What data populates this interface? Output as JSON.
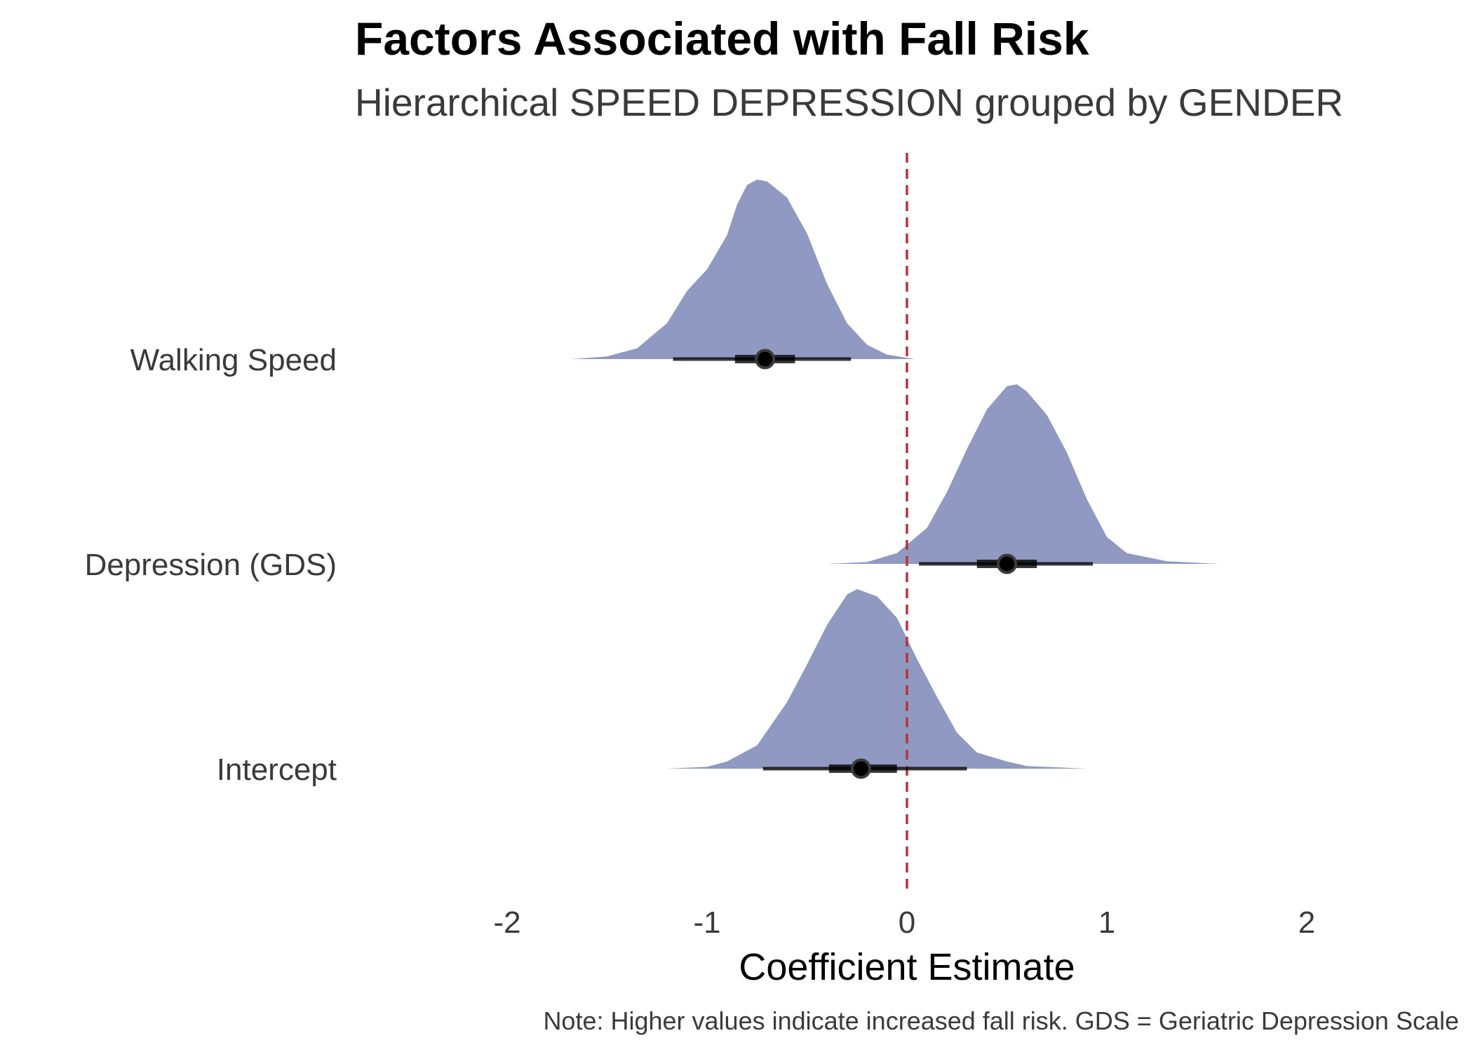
{
  "chart_data": {
    "type": "density-interval",
    "title": "Factors Associated with Fall Risk",
    "subtitle": "Hierarchical SPEED DEPRESSION grouped by GENDER",
    "xlabel": "Coefficient Estimate",
    "ylabel": "",
    "caption": "Note: Higher values indicate increased fall risk. GDS = Geriatric Depression Scale",
    "xlim": [
      -2.6,
      2.6
    ],
    "xticks": [
      -2,
      -1,
      0,
      1,
      2
    ],
    "xtick_labels": [
      "-2",
      "-1",
      "0",
      "1",
      "2"
    ],
    "reference_line": {
      "x": 0,
      "style": "dashed",
      "color": "#b5343d"
    },
    "grid": false,
    "colors": {
      "density": "#8f99c1",
      "interval": "#000000"
    },
    "categories": [
      "Walking Speed",
      "Depression (GDS)",
      "Intercept"
    ],
    "series": [
      {
        "label": "Walking Speed",
        "point": -0.71,
        "interval_66": [
          -0.86,
          -0.56
        ],
        "interval_95": [
          -1.17,
          -0.28
        ],
        "density_range": [
          -1.68,
          0.04
        ],
        "density": [
          [
            -1.68,
            0.0
          ],
          [
            -1.5,
            0.015
          ],
          [
            -1.35,
            0.06
          ],
          [
            -1.2,
            0.2
          ],
          [
            -1.1,
            0.38
          ],
          [
            -1.0,
            0.5
          ],
          [
            -0.9,
            0.69
          ],
          [
            -0.85,
            0.86
          ],
          [
            -0.8,
            0.97
          ],
          [
            -0.75,
            1.0
          ],
          [
            -0.7,
            0.99
          ],
          [
            -0.6,
            0.9
          ],
          [
            -0.5,
            0.7
          ],
          [
            -0.4,
            0.42
          ],
          [
            -0.3,
            0.2
          ],
          [
            -0.2,
            0.08
          ],
          [
            -0.1,
            0.025
          ],
          [
            0.04,
            0.0
          ]
        ]
      },
      {
        "label": "Depression (GDS)",
        "point": 0.5,
        "interval_66": [
          0.35,
          0.65
        ],
        "interval_95": [
          0.06,
          0.93
        ],
        "density_range": [
          -0.4,
          1.56
        ],
        "density": [
          [
            -0.4,
            0.0
          ],
          [
            -0.2,
            0.01
          ],
          [
            -0.05,
            0.06
          ],
          [
            0.1,
            0.2
          ],
          [
            0.2,
            0.4
          ],
          [
            0.3,
            0.64
          ],
          [
            0.4,
            0.86
          ],
          [
            0.5,
            0.99
          ],
          [
            0.55,
            1.0
          ],
          [
            0.6,
            0.96
          ],
          [
            0.7,
            0.83
          ],
          [
            0.8,
            0.62
          ],
          [
            0.9,
            0.36
          ],
          [
            1.0,
            0.15
          ],
          [
            1.1,
            0.06
          ],
          [
            1.3,
            0.015
          ],
          [
            1.56,
            0.0
          ]
        ]
      },
      {
        "label": "Intercept",
        "point": -0.23,
        "interval_66": [
          -0.39,
          -0.05
        ],
        "interval_95": [
          -0.72,
          0.3
        ],
        "density_range": [
          -1.2,
          0.9
        ],
        "density": [
          [
            -1.2,
            0.0
          ],
          [
            -1.0,
            0.01
          ],
          [
            -0.9,
            0.04
          ],
          [
            -0.75,
            0.13
          ],
          [
            -0.6,
            0.37
          ],
          [
            -0.5,
            0.58
          ],
          [
            -0.4,
            0.8
          ],
          [
            -0.3,
            0.97
          ],
          [
            -0.25,
            1.0
          ],
          [
            -0.15,
            0.96
          ],
          [
            -0.05,
            0.84
          ],
          [
            0.05,
            0.61
          ],
          [
            0.15,
            0.4
          ],
          [
            0.25,
            0.2
          ],
          [
            0.35,
            0.09
          ],
          [
            0.5,
            0.04
          ],
          [
            0.6,
            0.015
          ],
          [
            0.9,
            0.0
          ]
        ]
      }
    ]
  }
}
